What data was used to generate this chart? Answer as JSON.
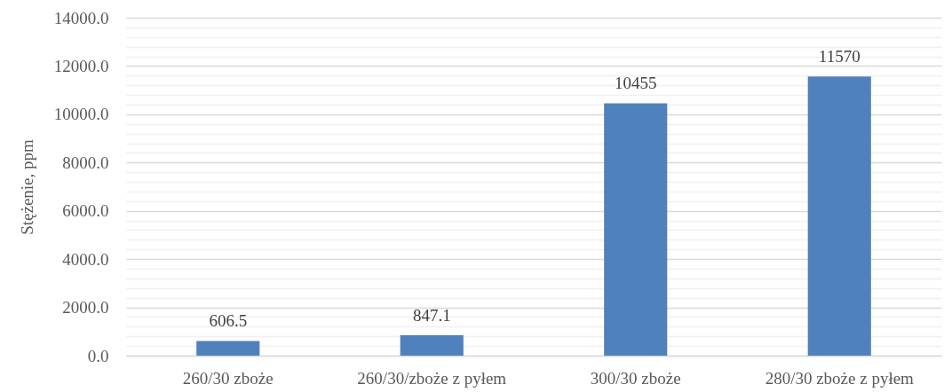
{
  "chart_data": {
    "type": "bar",
    "categories": [
      "260/30 zboże",
      "260/30/zboże z pyłem",
      "300/30 zboże",
      "280/30 zboże z pyłem"
    ],
    "values": [
      606.5,
      847.1,
      10455,
      11570
    ],
    "color": "#4f81bd",
    "data_labels": true,
    "ylabel": "Stężenie, ppm",
    "ylim": [
      0,
      14000
    ],
    "yticks": [
      {
        "value": 0,
        "label": "0.0"
      },
      {
        "value": 400,
        "label": null
      },
      {
        "value": 800,
        "label": null
      },
      {
        "value": 1200,
        "label": null
      },
      {
        "value": 1600,
        "label": null
      },
      {
        "value": 2000,
        "label": "2000.0"
      },
      {
        "value": 2400,
        "label": null
      },
      {
        "value": 2800,
        "label": null
      },
      {
        "value": 3200,
        "label": null
      },
      {
        "value": 3600,
        "label": null
      },
      {
        "value": 4000,
        "label": "4000.0"
      },
      {
        "value": 4400,
        "label": null
      },
      {
        "value": 4800,
        "label": null
      },
      {
        "value": 5200,
        "label": null
      },
      {
        "value": 5600,
        "label": null
      },
      {
        "value": 6000,
        "label": "6000.0"
      },
      {
        "value": 6400,
        "label": null
      },
      {
        "value": 6800,
        "label": null
      },
      {
        "value": 7200,
        "label": null
      },
      {
        "value": 7600,
        "label": null
      },
      {
        "value": 8000,
        "label": "8000.0"
      },
      {
        "value": 8400,
        "label": null
      },
      {
        "value": 8800,
        "label": null
      },
      {
        "value": 9200,
        "label": null
      },
      {
        "value": 9600,
        "label": null
      },
      {
        "value": 10000,
        "label": "10000.0"
      },
      {
        "value": 10400,
        "label": null
      },
      {
        "value": 10800,
        "label": null
      },
      {
        "value": 11200,
        "label": null
      },
      {
        "value": 11600,
        "label": null
      },
      {
        "value": 12000,
        "label": "12000.0"
      },
      {
        "value": 12400,
        "label": null
      },
      {
        "value": 12800,
        "label": null
      },
      {
        "value": 13200,
        "label": null
      },
      {
        "value": 13600,
        "label": null
      },
      {
        "value": 14000,
        "label": "14000.0"
      }
    ],
    "grid": "y"
  }
}
